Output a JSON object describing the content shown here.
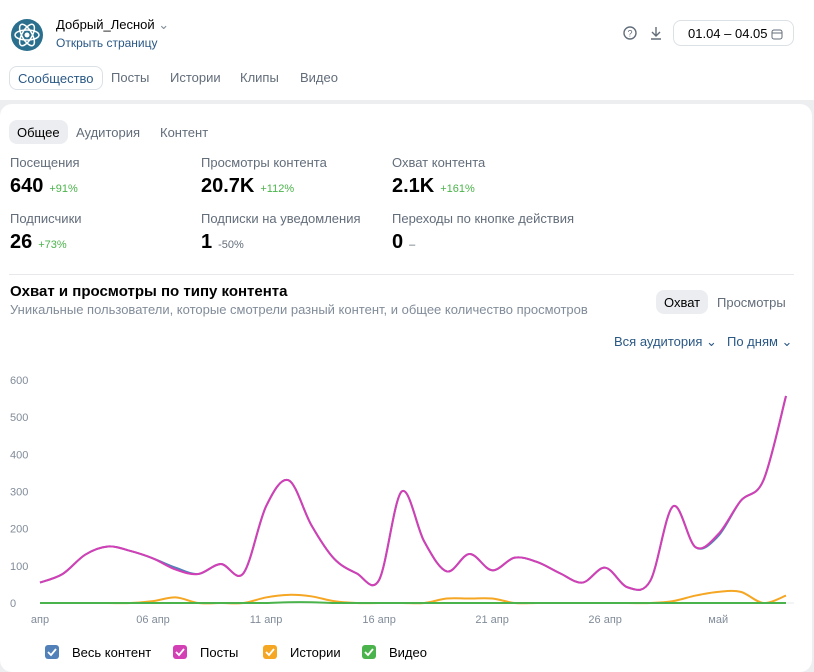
{
  "header": {
    "name": "Добрый_Лесной",
    "link": "Открыть страницу",
    "date_range": "01.04 – 04.05"
  },
  "tabs": [
    "Сообщество",
    "Посты",
    "Истории",
    "Клипы",
    "Видео"
  ],
  "subtabs": [
    "Общее",
    "Аудитория",
    "Контент"
  ],
  "stats": [
    {
      "label": "Посещения",
      "value": "640",
      "delta": "+91%"
    },
    {
      "label": "Просмотры контента",
      "value": "20.7K",
      "delta": "+112%"
    },
    {
      "label": "Охват контента",
      "value": "2.1K",
      "delta": "+161%"
    },
    {
      "label": "Подписчики",
      "value": "26",
      "delta": "+73%"
    },
    {
      "label": "Подписки на уведомления",
      "value": "1",
      "delta": "-50%"
    },
    {
      "label": "Переходы по кнопке действия",
      "value": "0",
      "delta": "–"
    }
  ],
  "chart_header": {
    "toggle": [
      "Охват",
      "Просмотры"
    ],
    "filters": [
      "Вся аудитория",
      "По дням"
    ]
  },
  "chart_data": {
    "type": "line",
    "title": "Охват и просмотры по типу контента",
    "subtitle": "Уникальные пользователи, которые смотрели разный контент, и общее количество просмотров",
    "categories": [
      "апр",
      null,
      null,
      null,
      null,
      "06 апр",
      null,
      null,
      null,
      null,
      "11 апр",
      null,
      null,
      null,
      null,
      "16 апр",
      null,
      null,
      null,
      null,
      "21 апр",
      null,
      null,
      null,
      null,
      "26 апр",
      null,
      null,
      null,
      null,
      "май",
      null,
      null,
      null
    ],
    "series": [
      {
        "name": "Весь контент",
        "color": "#5181b8",
        "values": [
          55,
          78,
          130,
          152,
          140,
          120,
          95,
          78,
          105,
          80,
          260,
          330,
          210,
          120,
          80,
          62,
          300,
          165,
          85,
          132,
          88,
          122,
          110,
          80,
          55,
          95,
          42,
          60,
          260,
          150,
          180,
          275,
          330,
          557
        ]
      },
      {
        "name": "Посты",
        "color": "#d33fb5",
        "values": [
          55,
          78,
          130,
          152,
          140,
          120,
          90,
          78,
          105,
          80,
          260,
          330,
          210,
          120,
          80,
          62,
          300,
          165,
          85,
          132,
          88,
          122,
          110,
          80,
          55,
          95,
          42,
          60,
          260,
          150,
          185,
          275,
          330,
          557
        ]
      },
      {
        "name": "Истории",
        "color": "#f5a623",
        "values": [
          0,
          0,
          0,
          0,
          0,
          5,
          15,
          0,
          0,
          0,
          15,
          22,
          18,
          5,
          0,
          0,
          0,
          0,
          12,
          12,
          12,
          0,
          0,
          0,
          0,
          0,
          0,
          0,
          5,
          20,
          30,
          30,
          0,
          20
        ]
      },
      {
        "name": "Видео",
        "color": "#4bb34b",
        "values": [
          0,
          0,
          0,
          0,
          0,
          0,
          0,
          0,
          0,
          0,
          0,
          2,
          2,
          0,
          0,
          0,
          0,
          0,
          0,
          0,
          0,
          0,
          0,
          0,
          0,
          0,
          0,
          0,
          0,
          0,
          0,
          0,
          0,
          0
        ]
      }
    ],
    "ylim": [
      0,
      600
    ],
    "yticks": [
      0,
      100,
      200,
      300,
      400,
      500,
      600
    ],
    "grid": false
  }
}
